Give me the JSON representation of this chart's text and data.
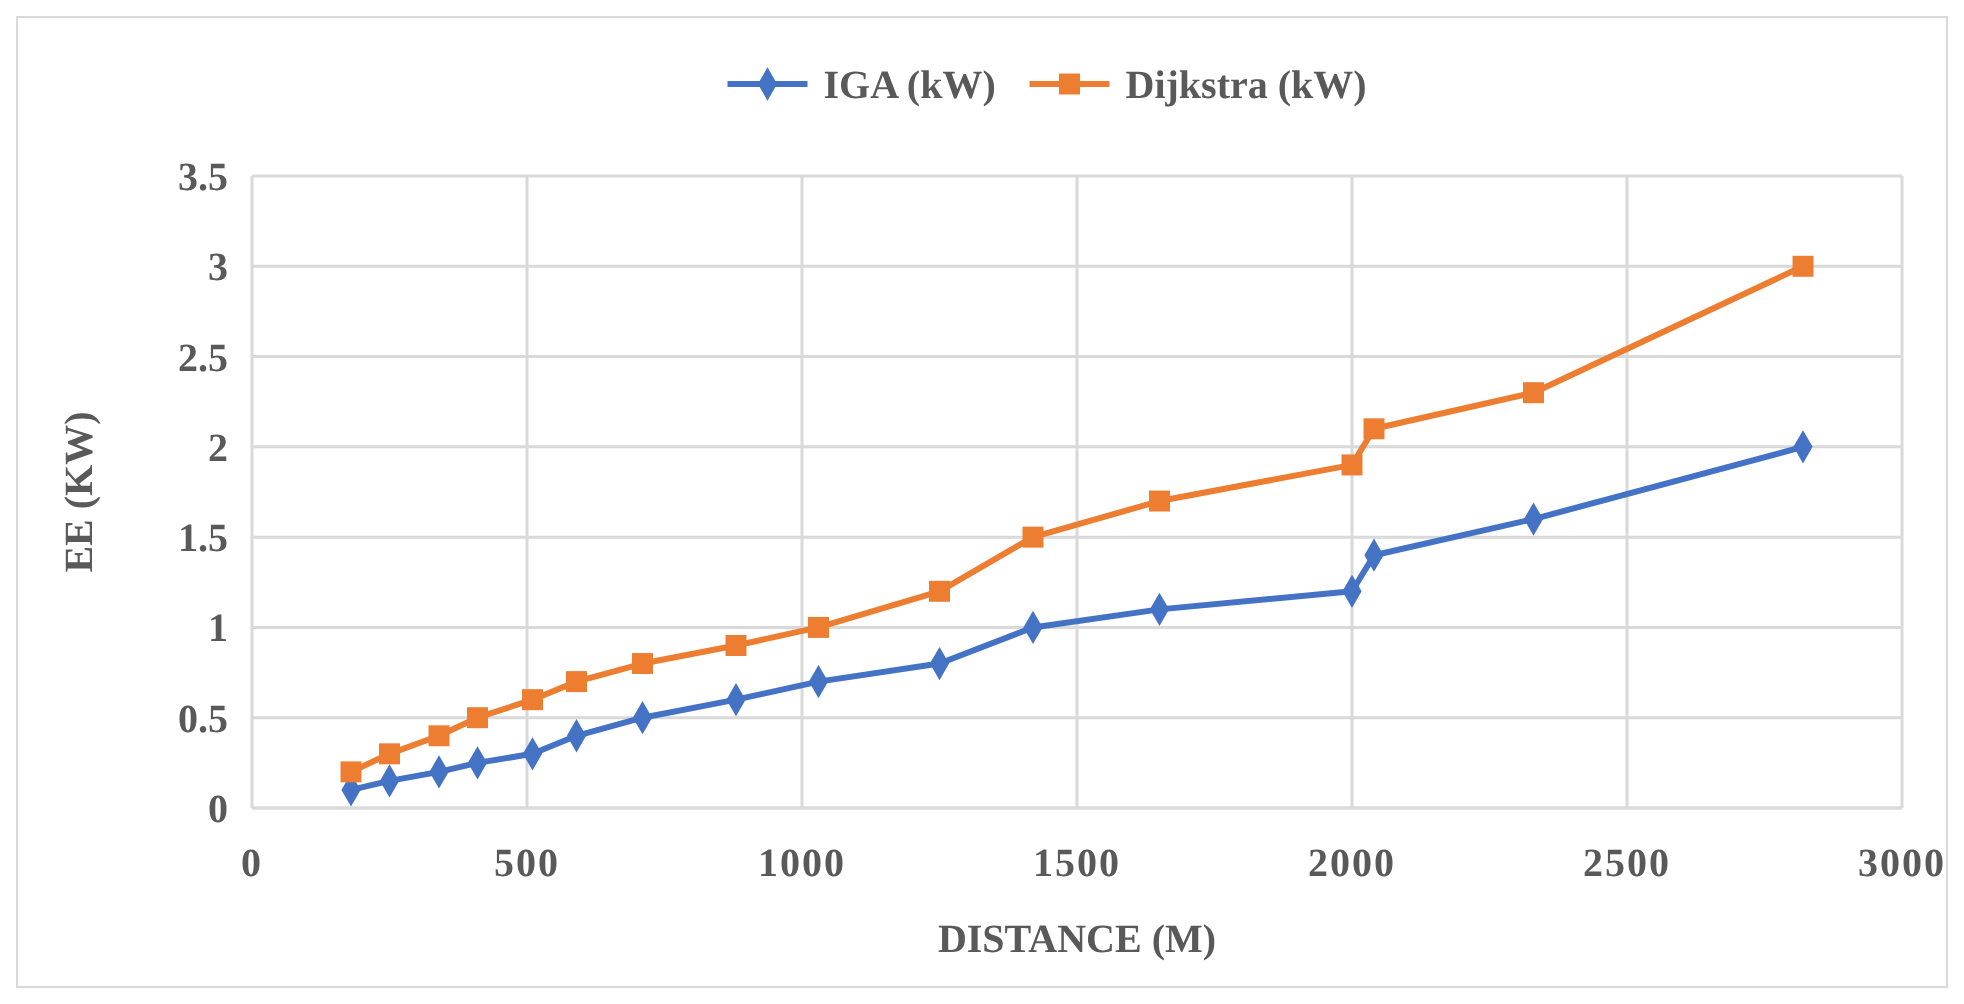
{
  "chart_data": {
    "type": "line",
    "xlabel": "DISTANCE (M)",
    "ylabel": "EE (KW)",
    "x": [
      180,
      250,
      340,
      410,
      510,
      590,
      710,
      880,
      1030,
      1250,
      1420,
      1650,
      2000,
      2040,
      2330,
      2820
    ],
    "series": [
      {
        "name": "IGA (kW)",
        "color": "#4472c4",
        "marker": "diamond",
        "values": [
          0.1,
          0.15,
          0.2,
          0.25,
          0.3,
          0.4,
          0.5,
          0.6,
          0.7,
          0.8,
          1.0,
          1.1,
          1.2,
          1.4,
          1.6,
          2.0
        ]
      },
      {
        "name": "Dijkstra (kW)",
        "color": "#ed7d31",
        "marker": "square",
        "values": [
          0.2,
          0.3,
          0.4,
          0.5,
          0.6,
          0.7,
          0.8,
          0.9,
          1.0,
          1.2,
          1.5,
          1.7,
          1.9,
          2.1,
          2.3,
          3.0
        ]
      }
    ],
    "xlim": [
      0,
      3000
    ],
    "xticks": [
      0,
      500,
      1000,
      1500,
      2000,
      2500,
      3000
    ],
    "ylim": [
      0,
      3.5
    ],
    "yticks": [
      0,
      0.5,
      1,
      1.5,
      2,
      2.5,
      3,
      3.5
    ],
    "grid": true,
    "legend": "top"
  }
}
